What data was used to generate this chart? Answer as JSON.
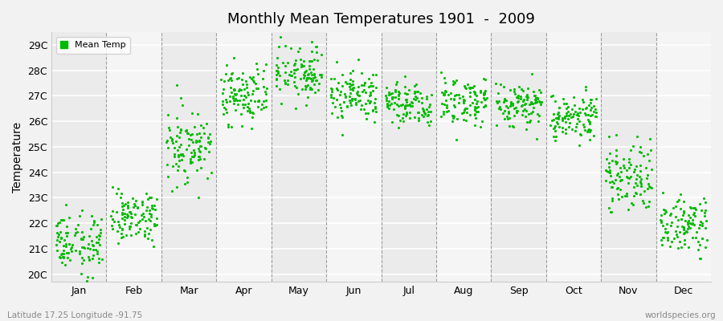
{
  "title": "Monthly Mean Temperatures 1901  -  2009",
  "ylabel": "Temperature",
  "bottom_left_label": "Latitude 17.25 Longitude -91.75",
  "bottom_right_label": "worldspecies.org",
  "legend_label": "Mean Temp",
  "marker_color": "#00bb00",
  "background_color": "#f2f2f2",
  "plot_bg_alt1": "#ebebeb",
  "plot_bg_alt2": "#f5f5f5",
  "months": [
    "Jan",
    "Feb",
    "Mar",
    "Apr",
    "May",
    "Jun",
    "Jul",
    "Aug",
    "Sep",
    "Oct",
    "Nov",
    "Dec"
  ],
  "ytick_labels": [
    "20C",
    "21C",
    "22C",
    "23C",
    "24C",
    "25C",
    "26C",
    "27C",
    "28C",
    "29C"
  ],
  "ytick_values": [
    20,
    21,
    22,
    23,
    24,
    25,
    26,
    27,
    28,
    29
  ],
  "ylim": [
    19.7,
    29.5
  ],
  "monthly_means": [
    21.2,
    22.3,
    25.0,
    27.1,
    27.9,
    27.1,
    26.7,
    26.8,
    26.7,
    26.2,
    23.8,
    21.9
  ],
  "monthly_stds": [
    0.55,
    0.5,
    0.7,
    0.55,
    0.5,
    0.55,
    0.45,
    0.5,
    0.5,
    0.45,
    0.65,
    0.6
  ],
  "n_years": 109,
  "seed": 123
}
